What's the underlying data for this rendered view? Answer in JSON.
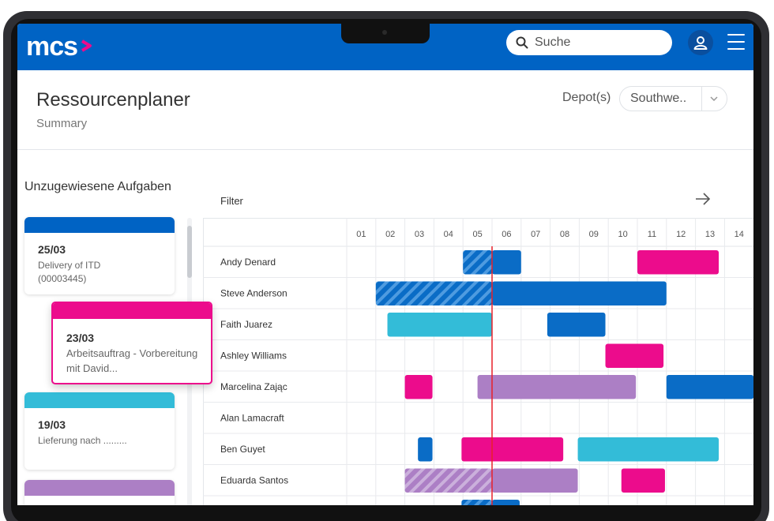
{
  "app": {
    "logo_text": "mcs"
  },
  "search": {
    "placeholder": "Suche"
  },
  "header": {
    "title": "Ressourcenplaner",
    "subtitle": "Summary",
    "depot_label": "Depot(s)",
    "depot_value": "Southwe.."
  },
  "unassigned": {
    "title": "Unzugewiesene Aufgaben",
    "cards": [
      {
        "date": "25/03",
        "desc": "Delivery of ITD\n(00003445)",
        "color": "#0063c4"
      },
      {
        "date": "23/03",
        "desc": "Arbeitsauftrag - Vorbereitung\nmit David...",
        "color": "#ec0c8c"
      },
      {
        "date": "19/03",
        "desc": "Lieferung nach .........",
        "color": "#33bcd8"
      },
      {
        "date": "",
        "desc": "",
        "color": "#ac7fc5"
      }
    ]
  },
  "gantt": {
    "filter_label": "Filter",
    "columns": [
      "01",
      "02",
      "03",
      "04",
      "05",
      "06",
      "07",
      "08",
      "09",
      "10",
      "11",
      "12",
      "13",
      "14"
    ],
    "now_marker": 5.0,
    "colors": {
      "blue": "#0a6cc6",
      "pink": "#ec0c8c",
      "cyan": "#33bcd8",
      "purple": "#ac7fc5",
      "now_line": "#e8202a"
    },
    "rows": [
      {
        "name": "Andy Denard",
        "bars": [
          {
            "start": 4.0,
            "end": 5.0,
            "color": "blue",
            "hatch": true
          },
          {
            "start": 5.0,
            "end": 6.0,
            "color": "blue"
          },
          {
            "start": 10.0,
            "end": 12.8,
            "color": "pink"
          }
        ]
      },
      {
        "name": "Steve Anderson",
        "bars": [
          {
            "start": 1.0,
            "end": 5.0,
            "color": "blue",
            "hatch": true
          },
          {
            "start": 5.0,
            "end": 11.0,
            "color": "blue"
          }
        ]
      },
      {
        "name": "Faith Juarez",
        "bars": [
          {
            "start": 1.4,
            "end": 5.0,
            "color": "cyan"
          },
          {
            "start": 6.9,
            "end": 8.9,
            "color": "blue"
          }
        ]
      },
      {
        "name": "Ashley Williams",
        "bars": [
          {
            "start": 8.9,
            "end": 10.9,
            "color": "pink"
          }
        ]
      },
      {
        "name": "Marcelina Zając",
        "bars": [
          {
            "start": 2.0,
            "end": 2.95,
            "color": "pink"
          },
          {
            "start": 4.5,
            "end": 9.95,
            "color": "purple"
          },
          {
            "start": 11.0,
            "end": 14.0,
            "color": "blue"
          }
        ]
      },
      {
        "name": "Alan Lamacraft",
        "bars": []
      },
      {
        "name": "Ben Guyet",
        "bars": [
          {
            "start": 2.45,
            "end": 2.95,
            "color": "blue"
          },
          {
            "start": 3.95,
            "end": 7.45,
            "color": "pink"
          },
          {
            "start": 7.95,
            "end": 12.8,
            "color": "cyan"
          }
        ]
      },
      {
        "name": "Eduarda Santos",
        "bars": [
          {
            "start": 2.0,
            "end": 5.0,
            "color": "purple",
            "hatch": true
          },
          {
            "start": 5.0,
            "end": 7.95,
            "color": "purple"
          },
          {
            "start": 9.45,
            "end": 10.95,
            "color": "pink"
          }
        ]
      },
      {
        "name": "",
        "bars": [
          {
            "start": 3.95,
            "end": 5.0,
            "color": "blue",
            "hatch": true
          },
          {
            "start": 5.0,
            "end": 5.95,
            "color": "blue"
          }
        ]
      }
    ]
  }
}
